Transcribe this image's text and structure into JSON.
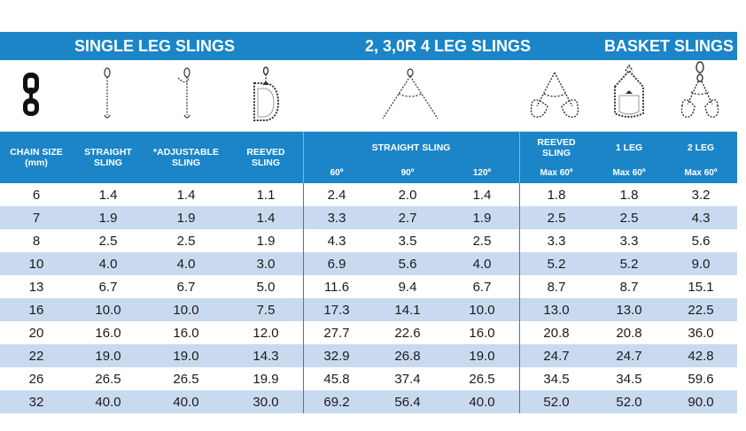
{
  "banner": {
    "single": "SINGLE LEG SLINGS",
    "multi": "2, 3,0R 4 LEG SLINGS",
    "basket": "BASKET SLINGS"
  },
  "headers": {
    "chain_size": "CHAIN SIZE",
    "chain_size_unit": "(mm)",
    "straight": "STRAIGHT",
    "straight2": "SLING",
    "adjustable": "*ADJUSTABLE",
    "adjustable2": "SLING",
    "reeved": "REEVED",
    "reeved2": "SLING",
    "straight_sling_group": "STRAIGHT SLING",
    "angle_60": "60º",
    "angle_90": "90º",
    "angle_120": "120º",
    "reeved_basket": "REEVED",
    "reeved_basket2": "SLING",
    "reeved_basket_sub": "Max 60º",
    "one_leg": "1 LEG",
    "one_leg_sub": "Max 60º",
    "two_leg": "2 LEG",
    "two_leg_sub": "Max 60º"
  },
  "rows": [
    [
      "6",
      "1.4",
      "1.4",
      "1.1",
      "2.4",
      "2.0",
      "1.4",
      "1.8",
      "1.8",
      "3.2"
    ],
    [
      "7",
      "1.9",
      "1.9",
      "1.4",
      "3.3",
      "2.7",
      "1.9",
      "2.5",
      "2.5",
      "4.3"
    ],
    [
      "8",
      "2.5",
      "2.5",
      "1.9",
      "4.3",
      "3.5",
      "2.5",
      "3.3",
      "3.3",
      "5.6"
    ],
    [
      "10",
      "4.0",
      "4.0",
      "3.0",
      "6.9",
      "5.6",
      "4.0",
      "5.2",
      "5.2",
      "9.0"
    ],
    [
      "13",
      "6.7",
      "6.7",
      "5.0",
      "11.6",
      "9.4",
      "6.7",
      "8.7",
      "8.7",
      "15.1"
    ],
    [
      "16",
      "10.0",
      "10.0",
      "7.5",
      "17.3",
      "14.1",
      "10.0",
      "13.0",
      "13.0",
      "22.5"
    ],
    [
      "20",
      "16.0",
      "16.0",
      "12.0",
      "27.7",
      "22.6",
      "16.0",
      "20.8",
      "20.8",
      "36.0"
    ],
    [
      "22",
      "19.0",
      "19.0",
      "14.3",
      "32.9",
      "26.8",
      "19.0",
      "24.7",
      "24.7",
      "42.8"
    ],
    [
      "26",
      "26.5",
      "26.5",
      "19.9",
      "45.8",
      "37.4",
      "26.5",
      "34.5",
      "34.5",
      "59.6"
    ],
    [
      "32",
      "40.0",
      "40.0",
      "30.0",
      "69.2",
      "56.4",
      "40.0",
      "52.0",
      "52.0",
      "90.0"
    ]
  ],
  "icons": [
    "chain-link-icon",
    "straight-sling-icon",
    "adjustable-sling-icon",
    "reeved-sling-icon",
    "two-leg-sling-icon",
    "reeved-basket-icon",
    "one-leg-basket-icon",
    "two-leg-basket-icon"
  ]
}
